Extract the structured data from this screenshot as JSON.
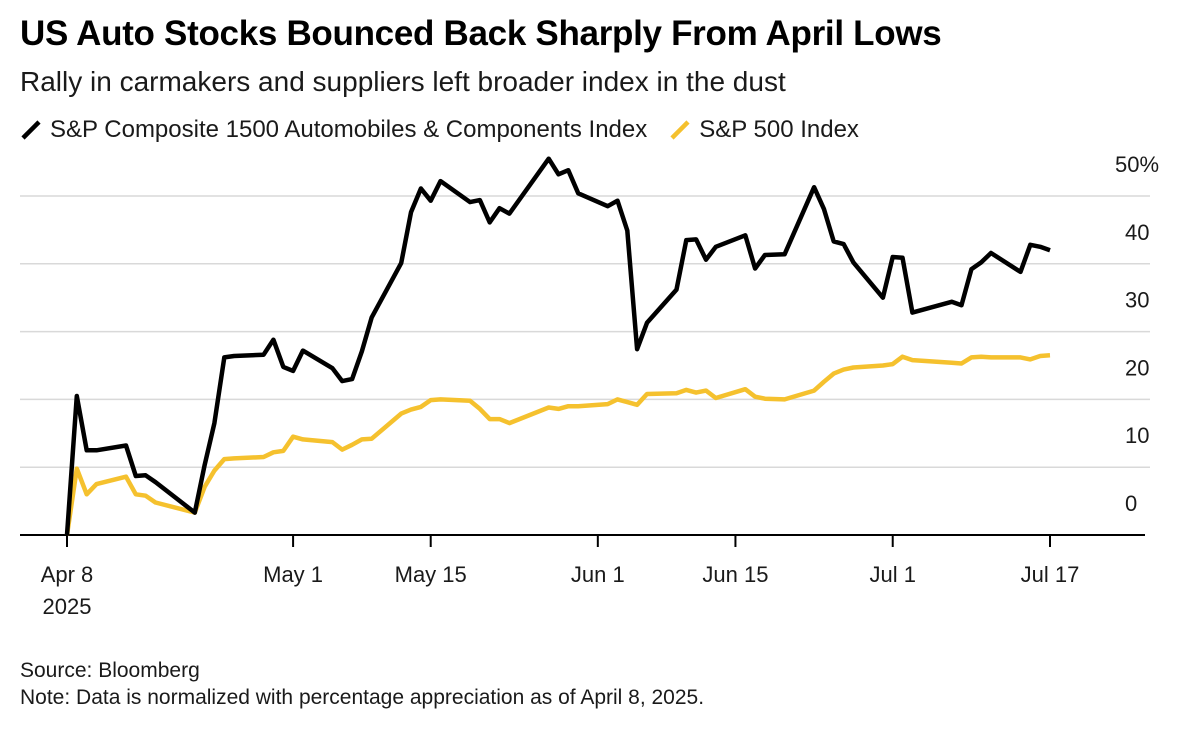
{
  "title": "US Auto Stocks Bounced Back Sharply From April Lows",
  "subtitle": "Rally in carmakers and suppliers left broader index in the dust",
  "source": "Source: Bloomberg",
  "note": "Note: Data is normalized with percentage appreciation as of April 8, 2025.",
  "colors": {
    "auto": "#000000",
    "sp500": "#f5c12e",
    "grid": "#d9d9d9",
    "axis": "#000000"
  },
  "chart_data": {
    "type": "line",
    "x_type": "date",
    "xlim": [
      "2025-04-08",
      "2025-07-17"
    ],
    "ylim": [
      0,
      55
    ],
    "yticks": [
      0,
      10,
      20,
      30,
      40,
      50
    ],
    "ytick_labels": [
      "0",
      "10",
      "20",
      "30",
      "40",
      "50%"
    ],
    "xticks": [
      "2025-04-08",
      "2025-05-01",
      "2025-05-15",
      "2025-06-01",
      "2025-06-15",
      "2025-07-01",
      "2025-07-17"
    ],
    "xtick_labels": [
      "Apr 8\n2025",
      "May 1",
      "May 15",
      "Jun 1",
      "Jun 15",
      "Jul 1",
      "Jul 17"
    ],
    "grid": true,
    "legend_position": "top-left",
    "series": [
      {
        "name": "S&P Composite 1500 Automobiles & Components Index",
        "color": "#000000",
        "x": [
          "2025-04-08",
          "2025-04-09",
          "2025-04-10",
          "2025-04-11",
          "2025-04-14",
          "2025-04-15",
          "2025-04-16",
          "2025-04-17",
          "2025-04-21",
          "2025-04-22",
          "2025-04-23",
          "2025-04-24",
          "2025-04-25",
          "2025-04-28",
          "2025-04-29",
          "2025-04-30",
          "2025-05-01",
          "2025-05-02",
          "2025-05-05",
          "2025-05-06",
          "2025-05-07",
          "2025-05-08",
          "2025-05-09",
          "2025-05-12",
          "2025-05-13",
          "2025-05-14",
          "2025-05-15",
          "2025-05-16",
          "2025-05-19",
          "2025-05-20",
          "2025-05-21",
          "2025-05-22",
          "2025-05-23",
          "2025-05-27",
          "2025-05-28",
          "2025-05-29",
          "2025-05-30",
          "2025-06-02",
          "2025-06-03",
          "2025-06-04",
          "2025-06-05",
          "2025-06-06",
          "2025-06-09",
          "2025-06-10",
          "2025-06-11",
          "2025-06-12",
          "2025-06-13",
          "2025-06-16",
          "2025-06-17",
          "2025-06-18",
          "2025-06-20",
          "2025-06-23",
          "2025-06-24",
          "2025-06-25",
          "2025-06-26",
          "2025-06-27",
          "2025-06-30",
          "2025-07-01",
          "2025-07-02",
          "2025-07-03",
          "2025-07-07",
          "2025-07-08",
          "2025-07-09",
          "2025-07-10",
          "2025-07-11",
          "2025-07-14",
          "2025-07-15",
          "2025-07-16",
          "2025-07-17"
        ],
        "values": [
          0,
          20.5,
          12.5,
          12.5,
          13.2,
          8.7,
          8.8,
          7.8,
          3.3,
          10.3,
          16.5,
          26.2,
          26.4,
          26.6,
          28.8,
          24.8,
          24.2,
          27.2,
          24.6,
          22.7,
          23.0,
          27.1,
          32.1,
          40.1,
          47.6,
          51.1,
          49.3,
          52.2,
          49.1,
          49.4,
          46.1,
          48.2,
          47.4,
          55.5,
          53.2,
          53.8,
          50.4,
          48.5,
          49.3,
          44.9,
          27.4,
          31.3,
          36.2,
          43.5,
          43.6,
          40.6,
          42.5,
          44.2,
          39.3,
          41.3,
          41.4,
          51.3,
          48.1,
          43.3,
          42.9,
          40.2,
          35.0,
          41.0,
          40.9,
          32.8,
          34.4,
          33.9,
          39.2,
          40.2,
          41.6,
          38.8,
          42.8,
          42.5,
          42.0
        ]
      },
      {
        "name": "S&P 500 Index",
        "color": "#f5c12e",
        "x": [
          "2025-04-08",
          "2025-04-09",
          "2025-04-10",
          "2025-04-11",
          "2025-04-14",
          "2025-04-15",
          "2025-04-16",
          "2025-04-17",
          "2025-04-21",
          "2025-04-22",
          "2025-04-23",
          "2025-04-24",
          "2025-04-25",
          "2025-04-28",
          "2025-04-29",
          "2025-04-30",
          "2025-05-01",
          "2025-05-02",
          "2025-05-05",
          "2025-05-06",
          "2025-05-07",
          "2025-05-08",
          "2025-05-09",
          "2025-05-12",
          "2025-05-13",
          "2025-05-14",
          "2025-05-15",
          "2025-05-16",
          "2025-05-19",
          "2025-05-20",
          "2025-05-21",
          "2025-05-22",
          "2025-05-23",
          "2025-05-27",
          "2025-05-28",
          "2025-05-29",
          "2025-05-30",
          "2025-06-02",
          "2025-06-03",
          "2025-06-04",
          "2025-06-05",
          "2025-06-06",
          "2025-06-09",
          "2025-06-10",
          "2025-06-11",
          "2025-06-12",
          "2025-06-13",
          "2025-06-16",
          "2025-06-17",
          "2025-06-18",
          "2025-06-20",
          "2025-06-23",
          "2025-06-24",
          "2025-06-25",
          "2025-06-26",
          "2025-06-27",
          "2025-06-30",
          "2025-07-01",
          "2025-07-02",
          "2025-07-03",
          "2025-07-07",
          "2025-07-08",
          "2025-07-09",
          "2025-07-10",
          "2025-07-11",
          "2025-07-14",
          "2025-07-15",
          "2025-07-16",
          "2025-07-17"
        ],
        "values": [
          0,
          9.8,
          6.0,
          7.5,
          8.6,
          6.0,
          5.8,
          4.8,
          3.3,
          7.1,
          9.5,
          11.2,
          11.3,
          11.5,
          12.2,
          12.4,
          14.5,
          14.1,
          13.7,
          12.6,
          13.3,
          14.1,
          14.2,
          17.9,
          18.5,
          18.9,
          19.9,
          20.0,
          19.8,
          18.6,
          17.1,
          17.1,
          16.5,
          18.8,
          18.6,
          19.0,
          19.0,
          19.3,
          20.0,
          19.6,
          19.2,
          20.8,
          20.9,
          21.4,
          21.0,
          21.3,
          20.2,
          21.5,
          20.4,
          20.1,
          20.0,
          21.3,
          22.6,
          23.8,
          24.4,
          24.7,
          25.0,
          25.2,
          26.3,
          25.8,
          25.4,
          25.3,
          26.2,
          26.3,
          26.2,
          26.2,
          25.9,
          26.4,
          26.5
        ]
      }
    ]
  }
}
